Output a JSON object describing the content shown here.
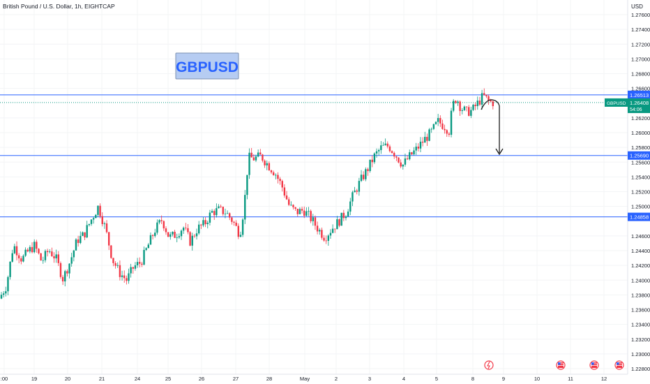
{
  "header": {
    "symbol_title": "British Pound / U.S. Dollar, 1h, EIGHTCAP"
  },
  "watermark": {
    "text": "GBPUSD",
    "text_color": "#2962FF",
    "bg_color": "#B6CCF2",
    "border_color": "#7A8FB0"
  },
  "price_axis": {
    "currency": "USD",
    "tick_labels": [
      "1.27600",
      "1.27400",
      "1.27200",
      "1.27000",
      "1.26800",
      "1.26600",
      "1.26200",
      "1.26000",
      "1.25800",
      "1.25600",
      "1.25400",
      "1.25200",
      "1.25000",
      "1.24600",
      "1.24400",
      "1.24200",
      "1.24000",
      "1.23800",
      "1.23600",
      "1.23400",
      "1.23200",
      "1.23000",
      "1.22800"
    ],
    "current_price_tag": {
      "symbol": "GBPUSD",
      "price": "1.26408",
      "countdown": "54:06",
      "color": "#089981"
    },
    "level_tags": [
      "1.26513",
      "1.25690",
      "1.24858"
    ],
    "level_color": "#2962FF"
  },
  "time_axis": {
    "labels": [
      ":00",
      "19",
      "20",
      "21",
      "24",
      "25",
      "26",
      "27",
      "28",
      "May",
      "2",
      "3",
      "4",
      "5",
      "8",
      "9",
      "10",
      "11",
      "12"
    ]
  },
  "events": {
    "icons": [
      "lightning-icon",
      "us-flag-icon",
      "us-flag-icon",
      "us-flag-icon"
    ]
  },
  "chart_data": {
    "type": "candlestick",
    "title": "British Pound / U.S. Dollar, 1h, EIGHTCAP",
    "ylim": [
      1.2275,
      1.2775
    ],
    "x_labels": [
      ":00",
      "19",
      "20",
      "21",
      "24",
      "25",
      "26",
      "27",
      "28",
      "May",
      "2",
      "3",
      "4",
      "5",
      "8",
      "9",
      "10",
      "11",
      "12"
    ],
    "up_color": "#089981",
    "down_color": "#F23645",
    "horizontal_levels": [
      1.26513,
      1.2569,
      1.24858
    ],
    "current_price": 1.26408,
    "annotation": "hand-drawn arrow from the high down to 1.25690",
    "path_points": [
      [
        0.0,
        1.2375
      ],
      [
        0.5,
        1.2392
      ],
      [
        1.0,
        1.2448
      ],
      [
        1.6,
        1.2428
      ],
      [
        2.0,
        1.2438
      ],
      [
        2.5,
        1.2447
      ],
      [
        3.0,
        1.2425
      ],
      [
        3.5,
        1.2441
      ],
      [
        4.0,
        1.243
      ],
      [
        4.5,
        1.2402
      ],
      [
        5.0,
        1.2425
      ],
      [
        5.5,
        1.2454
      ],
      [
        6.0,
        1.2462
      ],
      [
        6.5,
        1.2482
      ],
      [
        7.0,
        1.25
      ],
      [
        7.5,
        1.247
      ],
      [
        8.0,
        1.2428
      ],
      [
        8.5,
        1.241
      ],
      [
        9.0,
        1.24
      ],
      [
        9.5,
        1.2418
      ],
      [
        10.0,
        1.2424
      ],
      [
        10.5,
        1.2446
      ],
      [
        11.0,
        1.2468
      ],
      [
        11.5,
        1.2482
      ],
      [
        12.0,
        1.2458
      ],
      [
        12.5,
        1.2462
      ],
      [
        13.0,
        1.2472
      ],
      [
        13.5,
        1.2452
      ],
      [
        14.0,
        1.247
      ],
      [
        14.5,
        1.2476
      ],
      [
        15.0,
        1.2492
      ],
      [
        15.5,
        1.2495
      ],
      [
        16.0,
        1.2492
      ],
      [
        16.5,
        1.248
      ],
      [
        17.0,
        1.2462
      ],
      [
        17.3,
        1.25
      ],
      [
        17.6,
        1.2566
      ],
      [
        18.0,
        1.2565
      ],
      [
        18.5,
        1.2568
      ],
      [
        19.0,
        1.2556
      ],
      [
        19.5,
        1.2545
      ],
      [
        20.0,
        1.2526
      ],
      [
        20.5,
        1.25
      ],
      [
        21.0,
        1.2492
      ],
      [
        21.5,
        1.2495
      ],
      [
        22.0,
        1.2484
      ],
      [
        22.5,
        1.247
      ],
      [
        23.0,
        1.2458
      ],
      [
        23.5,
        1.247
      ],
      [
        24.0,
        1.248
      ],
      [
        24.5,
        1.2492
      ],
      [
        25.0,
        1.2515
      ],
      [
        25.5,
        1.2534
      ],
      [
        26.0,
        1.255
      ],
      [
        26.5,
        1.2568
      ],
      [
        27.0,
        1.258
      ],
      [
        27.5,
        1.2582
      ],
      [
        28.0,
        1.257
      ],
      [
        28.5,
        1.2556
      ],
      [
        29.0,
        1.2568
      ],
      [
        29.5,
        1.2578
      ],
      [
        30.0,
        1.259
      ],
      [
        30.5,
        1.26
      ],
      [
        31.0,
        1.2615
      ],
      [
        31.5,
        1.2608
      ],
      [
        31.8,
        1.2602
      ],
      [
        32.0,
        1.2636
      ],
      [
        32.3,
        1.2648
      ],
      [
        32.6,
        1.2634
      ],
      [
        33.0,
        1.2628
      ],
      [
        33.4,
        1.263
      ],
      [
        33.8,
        1.264
      ],
      [
        34.2,
        1.265
      ],
      [
        34.6,
        1.2642
      ],
      [
        34.8,
        1.2641
      ]
    ]
  }
}
